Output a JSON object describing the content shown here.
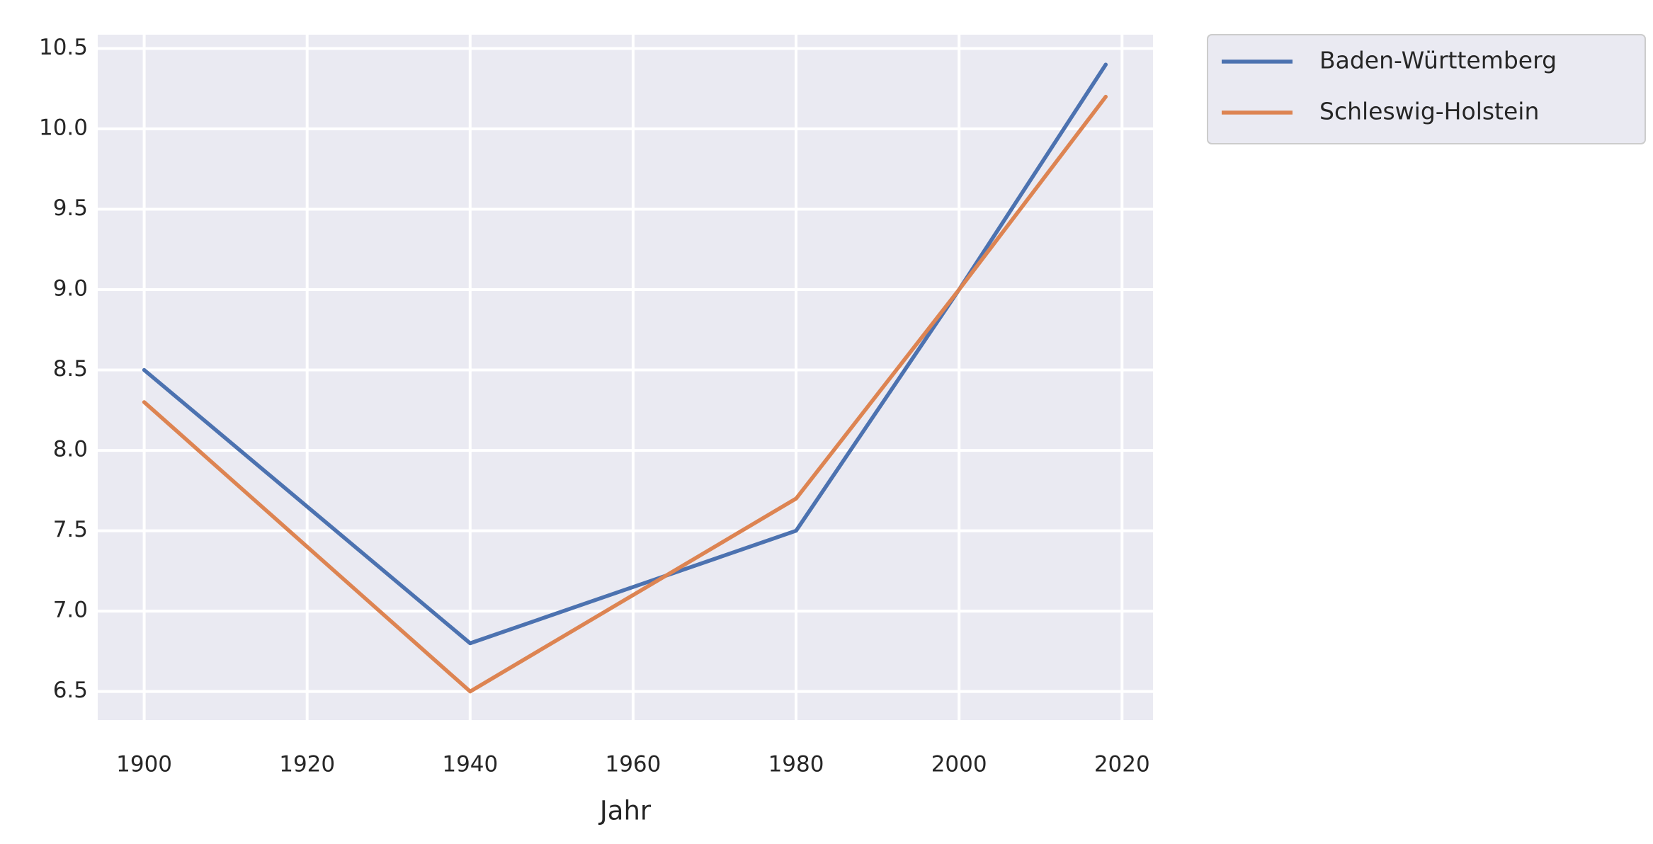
{
  "chart_data": {
    "type": "line",
    "x": [
      1900,
      1940,
      1980,
      2000,
      2018
    ],
    "series": [
      {
        "name": "Baden-Württemberg",
        "color": "#4c72b0",
        "values": [
          8.5,
          6.8,
          7.5,
          9.0,
          10.4
        ]
      },
      {
        "name": "Schleswig-Holstein",
        "color": "#dd8452",
        "values": [
          8.3,
          6.5,
          7.7,
          9.0,
          10.2
        ]
      }
    ],
    "xlabel": "Jahr",
    "xlim": [
      1894.3,
      2023.8
    ],
    "ylim": [
      6.322,
      10.586
    ],
    "xticks": [
      1900,
      1920,
      1940,
      1960,
      1980,
      2000,
      2020
    ],
    "yticks": [
      6.5,
      {
        "value": 7,
        "label": "7.0"
      },
      7.5,
      {
        "value": 8,
        "label": "8.0"
      },
      8.5,
      {
        "value": 9,
        "label": "9.0"
      },
      9.5,
      {
        "value": 10,
        "label": "10.0"
      },
      10.5
    ],
    "grid": true,
    "legend": "outside"
  }
}
